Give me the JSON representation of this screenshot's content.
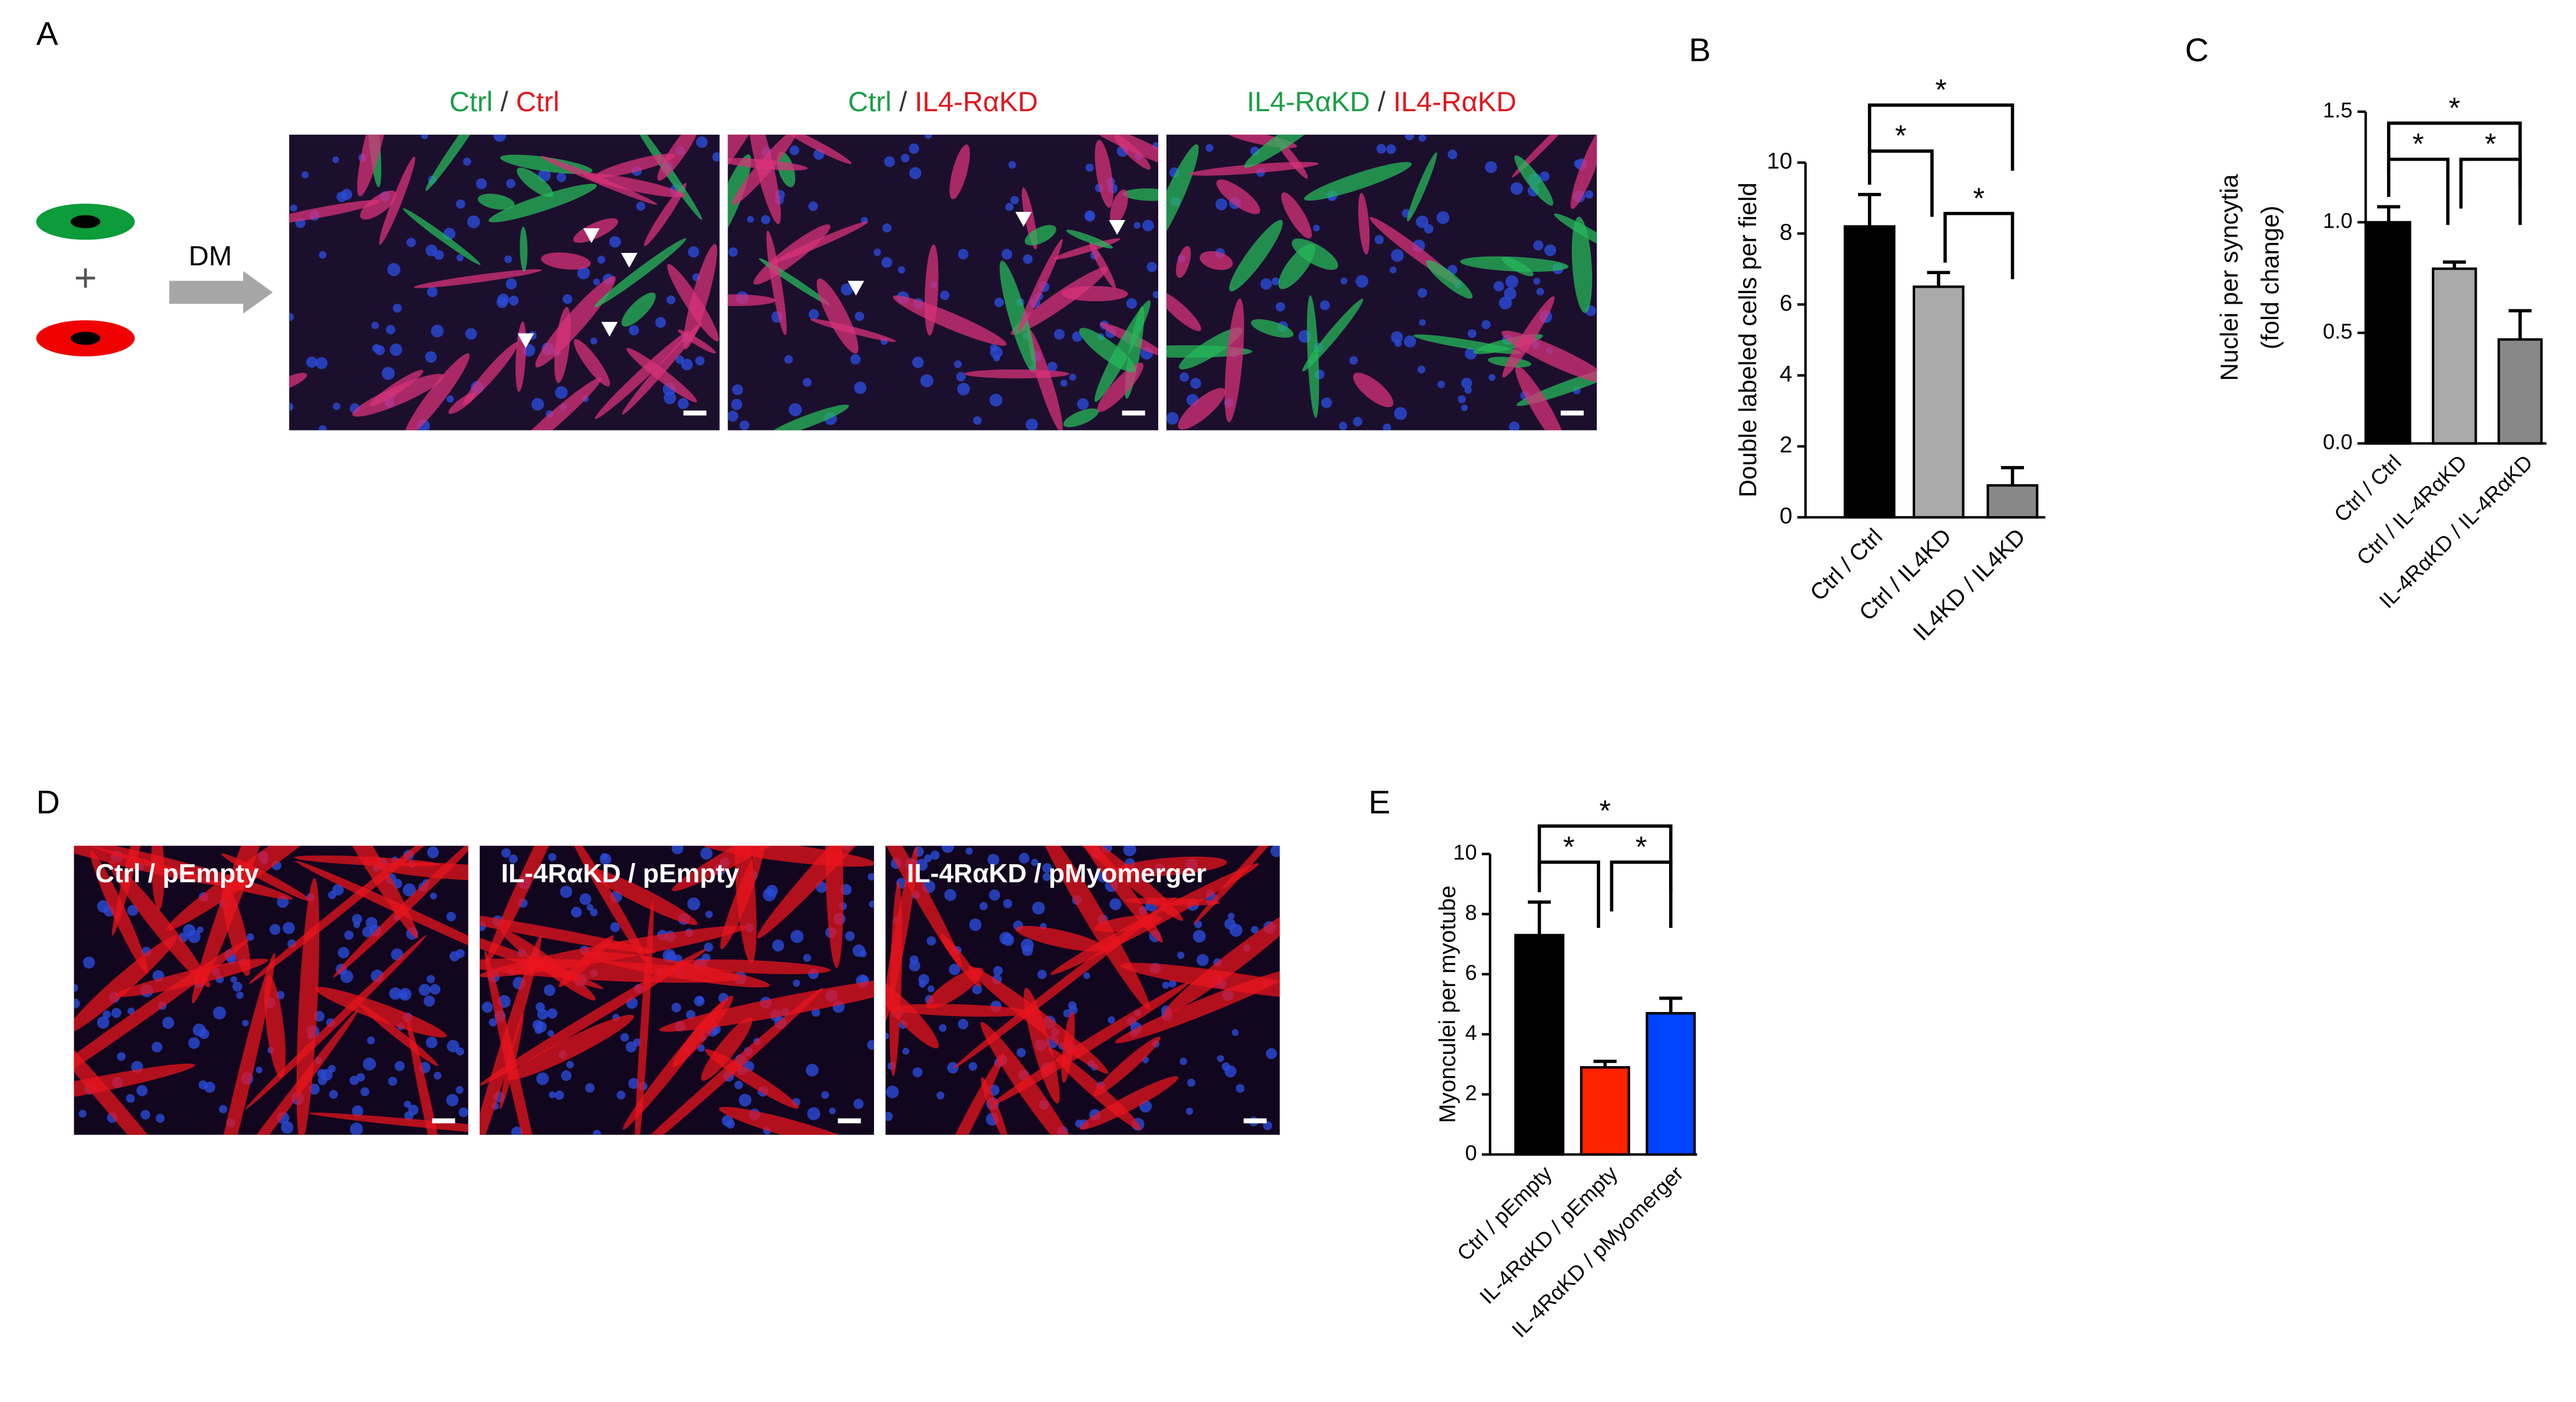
{
  "panels": {
    "A": {
      "label": "A",
      "plus": "+",
      "arrow": "DM",
      "images": [
        {
          "caption": [
            {
              "text": "Ctrl",
              "color": "#1a9e45"
            },
            {
              "text": " / ",
              "color": "#333333"
            },
            {
              "text": "Ctrl",
              "color": "#e0161e"
            }
          ]
        },
        {
          "caption": [
            {
              "text": "Ctrl",
              "color": "#1a9e45"
            },
            {
              "text": " / ",
              "color": "#333333"
            },
            {
              "text": "IL4-RαKD",
              "color": "#e0161e"
            }
          ]
        },
        {
          "caption": [
            {
              "text": "IL4-RαKD",
              "color": "#1a9e45"
            },
            {
              "text": " / ",
              "color": "#333333"
            },
            {
              "text": "IL4-RαKD",
              "color": "#e0161e"
            }
          ]
        }
      ]
    },
    "D": {
      "label": "D",
      "images": [
        {
          "caption": "Ctrl / pEmpty"
        },
        {
          "caption": "IL-4RαKD / pEmpty"
        },
        {
          "caption": "IL-4RαKD / pMyomerger"
        }
      ]
    }
  },
  "chart_data": [
    {
      "type": "bar",
      "title": "B",
      "ylabel": [
        "Double labeled cells per field"
      ],
      "categories": [
        "Ctrl / Ctrl",
        "Ctrl / IL4KD",
        "IL4KD / IL4KD"
      ],
      "values": [
        8.2,
        6.5,
        0.9
      ],
      "errors": [
        0.9,
        0.4,
        0.5
      ],
      "colors": [
        "#000000",
        "#aaaaaa",
        "#888888"
      ],
      "ylim": [
        0,
        10
      ],
      "yticks": [
        0,
        2,
        4,
        6,
        8,
        10
      ],
      "significance": [
        {
          "pair": [
            0,
            1
          ],
          "label": "*"
        },
        {
          "pair": [
            0,
            2
          ],
          "label": "*"
        },
        {
          "pair": [
            1,
            2
          ],
          "label": "*"
        }
      ]
    },
    {
      "type": "bar",
      "title": "C",
      "ylabel": [
        "Nuclei per syncytia",
        "(fold change)"
      ],
      "categories": [
        "Ctrl / Ctrl",
        "Ctrl / IL-4RαKD",
        "IL-4RαKD / IL-4RαKD"
      ],
      "values": [
        1.0,
        0.79,
        0.47
      ],
      "errors": [
        0.07,
        0.03,
        0.13
      ],
      "colors": [
        "#000000",
        "#aaaaaa",
        "#888888"
      ],
      "ylim": [
        0,
        1.5
      ],
      "yticks": [
        {
          "value": 0,
          "label": "0.0"
        },
        0.5,
        {
          "value": 1,
          "label": "1.0"
        },
        1.5
      ],
      "significance": [
        {
          "pair": [
            0,
            1
          ],
          "label": "*"
        },
        {
          "pair": [
            0,
            2
          ],
          "label": "*"
        },
        {
          "pair": [
            1,
            2
          ],
          "label": "*"
        }
      ]
    },
    {
      "type": "bar",
      "title": "E",
      "ylabel": [
        "Myonculei per  myotube"
      ],
      "categories": [
        "Ctrl / pEmpty",
        "IL-4RαKD / pEmpty",
        "IL-4RαKD / pMyomerger"
      ],
      "values": [
        7.3,
        2.9,
        4.7
      ],
      "errors": [
        1.1,
        0.2,
        0.5
      ],
      "colors": [
        "#000000",
        "#ff2200",
        "#0044ff"
      ],
      "ylim": [
        0,
        10
      ],
      "yticks": [
        0,
        2,
        4,
        6,
        8,
        10
      ],
      "significance": [
        {
          "pair": [
            0,
            1
          ],
          "label": "*"
        },
        {
          "pair": [
            0,
            2
          ],
          "label": "*"
        },
        {
          "pair": [
            1,
            2
          ],
          "label": "*"
        }
      ]
    }
  ]
}
